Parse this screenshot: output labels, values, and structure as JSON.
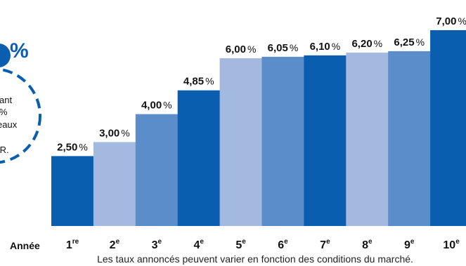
{
  "chart_data": {
    "type": "bar",
    "categories": [
      {
        "main": "1",
        "sup": "re"
      },
      {
        "main": "2",
        "sup": "e"
      },
      {
        "main": "3",
        "sup": "e"
      },
      {
        "main": "4",
        "sup": "e"
      },
      {
        "main": "5",
        "sup": "e"
      },
      {
        "main": "6",
        "sup": "e"
      },
      {
        "main": "7",
        "sup": "e"
      },
      {
        "main": "8",
        "sup": "e"
      },
      {
        "main": "9",
        "sup": "e"
      },
      {
        "main": "10",
        "sup": "e"
      }
    ],
    "values": [
      2.5,
      3.0,
      4.0,
      4.85,
      6.0,
      6.05,
      6.1,
      6.2,
      6.25,
      7.0
    ],
    "value_labels": [
      "2,50",
      "3,00",
      "4,00",
      "4,85",
      "6,00",
      "6,05",
      "6,10",
      "6,20",
      "6,25",
      "7,00"
    ],
    "unit": "%",
    "xlabel": "Année",
    "ylim": [
      0,
      7.0
    ],
    "grid": false,
    "bar_colors": [
      "#0a5eb0",
      "#a4b9e0",
      "#5b8dcb",
      "#0a5eb0",
      "#a4b9e0",
      "#5b8dcb",
      "#0a5eb0",
      "#a4b9e0",
      "#5b8dcb",
      "#0a5eb0"
    ]
  },
  "footnote": "Les taux annoncés peuvent varier en fonction des conditions du marché.",
  "badge": {
    "percent": "%",
    "lines": [
      "ant",
      "%",
      "eaux",
      ".R."
    ],
    "color": "#0a5eb0"
  }
}
